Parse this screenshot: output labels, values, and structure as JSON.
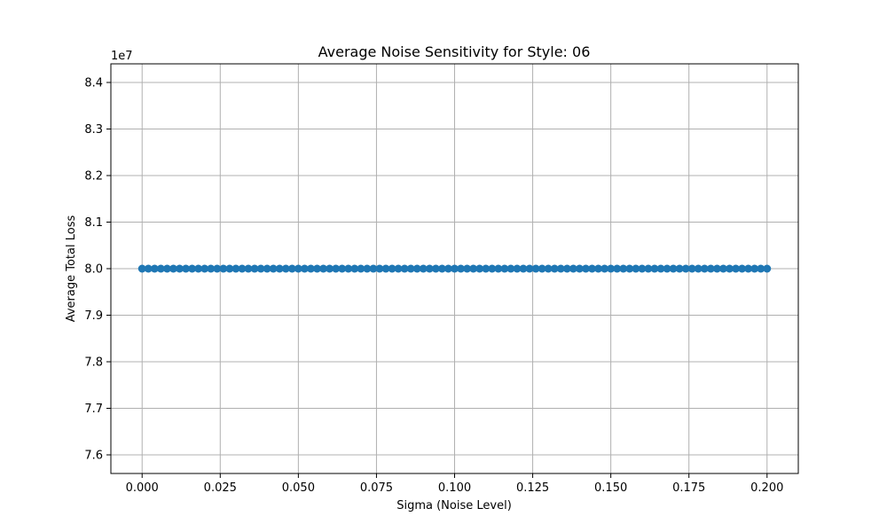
{
  "chart_data": {
    "type": "line",
    "title": "Average Noise Sensitivity for Style: 06",
    "xlabel": "Sigma (Noise Level)",
    "ylabel": "Average Total Loss",
    "y_offset_label": "1e7",
    "xlim": [
      -0.01,
      0.21
    ],
    "ylim": [
      7.56,
      8.44
    ],
    "x_ticks": [
      0.0,
      0.025,
      0.05,
      0.075,
      0.1,
      0.125,
      0.15,
      0.175,
      0.2
    ],
    "x_tick_labels": [
      "0.000",
      "0.025",
      "0.050",
      "0.075",
      "0.100",
      "0.125",
      "0.150",
      "0.175",
      "0.200"
    ],
    "y_ticks": [
      7.6,
      7.7,
      7.8,
      7.9,
      8.0,
      8.1,
      8.2,
      8.3,
      8.4
    ],
    "y_tick_labels": [
      "7.6",
      "7.7",
      "7.8",
      "7.9",
      "8.0",
      "8.1",
      "8.2",
      "8.3",
      "8.4"
    ],
    "grid": true,
    "legend": "none",
    "series": [
      {
        "color": "#1f77b4",
        "marker": "circle",
        "x_start": 0.0,
        "x_end": 0.2,
        "point_count": 101,
        "y_constant": 8.0
      }
    ]
  }
}
